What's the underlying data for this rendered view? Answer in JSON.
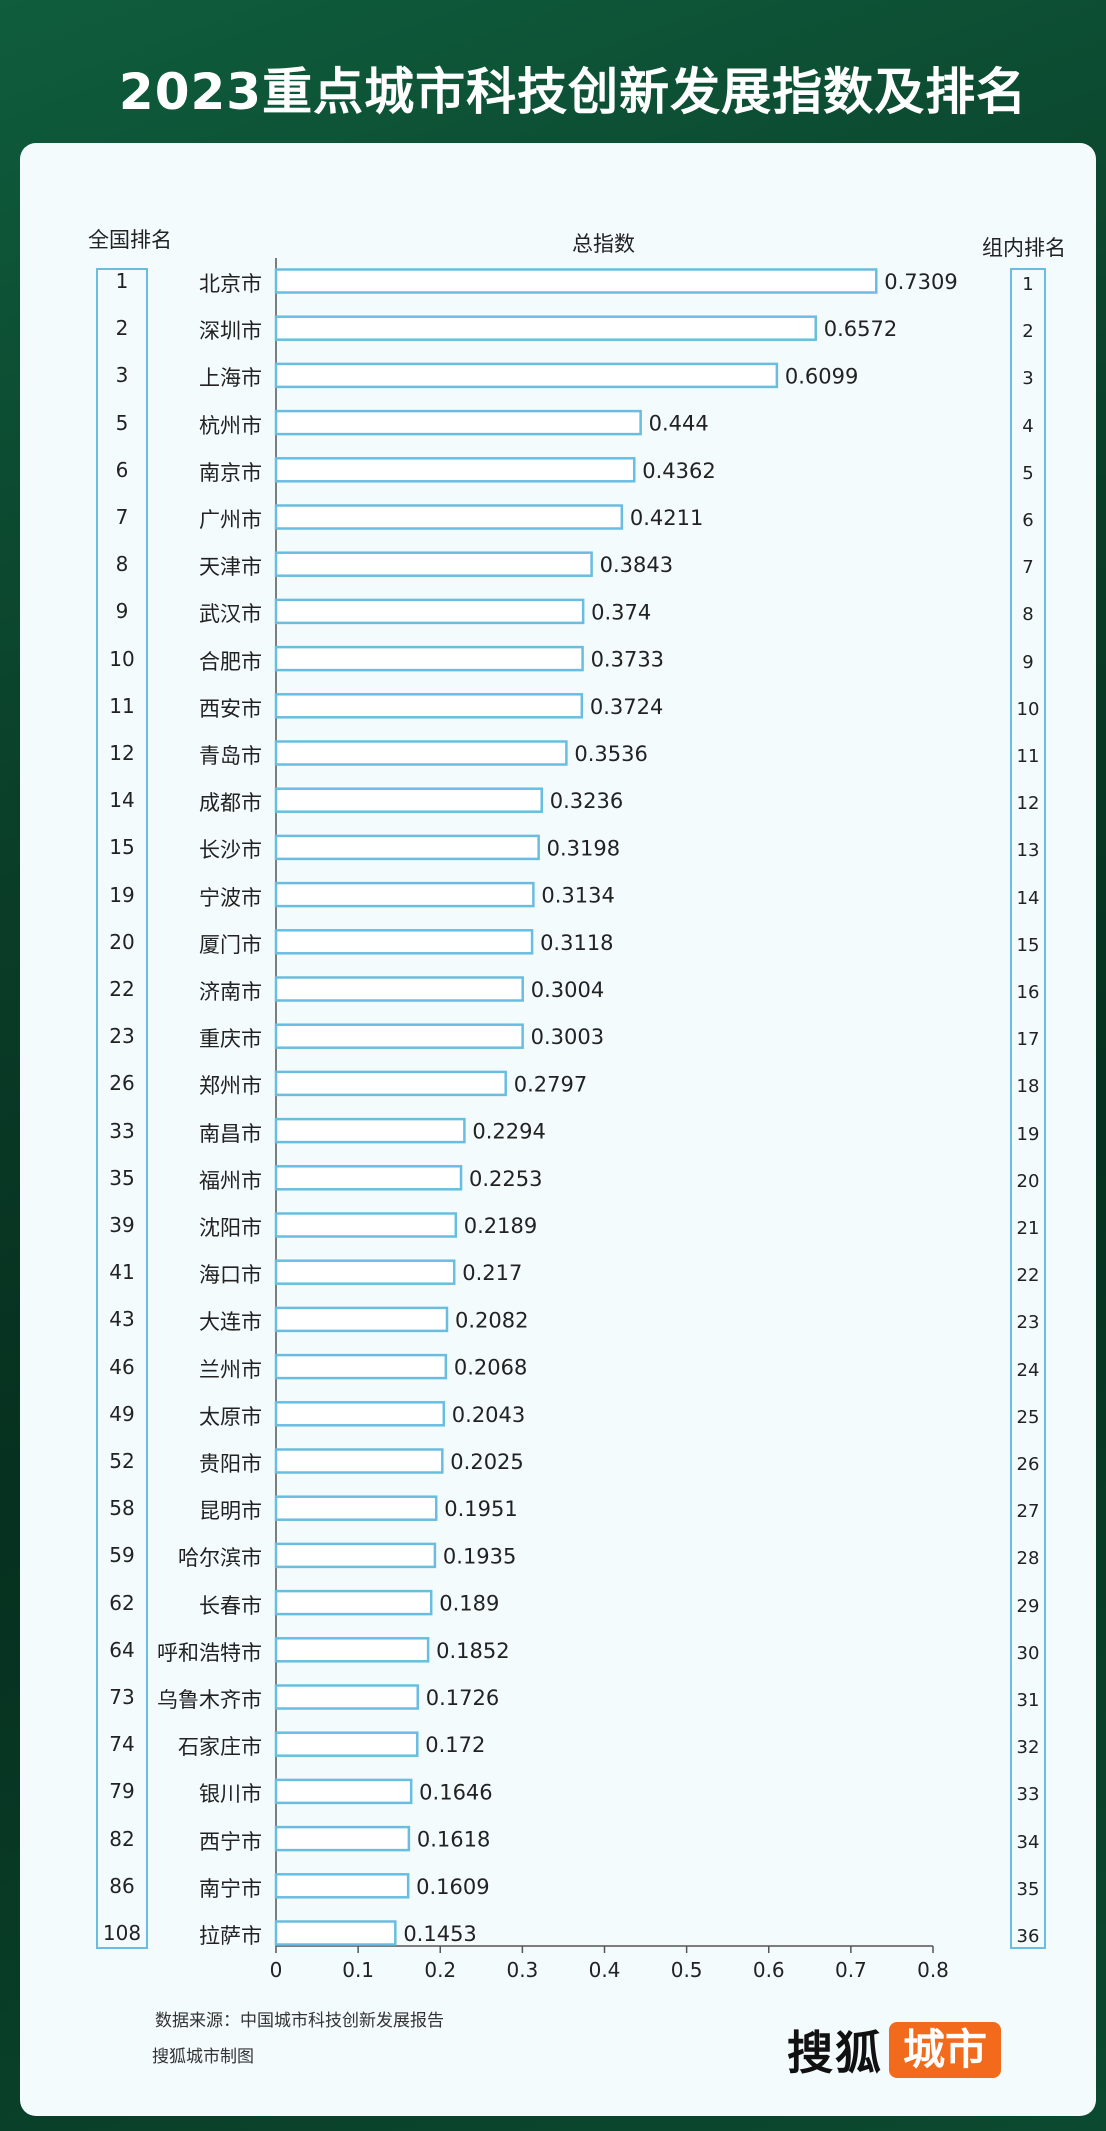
{
  "title": "2023重点城市科技创新发展指数及排名",
  "headers": {
    "national_rank": "全国排名",
    "total_index": "总指数",
    "group_rank": "组内排名"
  },
  "footer": {
    "source": "数据来源：中国城市科技创新发展报告",
    "credit": "搜狐城市制图"
  },
  "logo": {
    "brand": "搜狐",
    "tag": "城市"
  },
  "colors": {
    "bar_stroke": "#69bde0",
    "bar_fill": "#ffffff",
    "accent": "#f26b1d",
    "card": "#f4fbfc"
  },
  "chart_data": {
    "type": "bar",
    "orientation": "horizontal",
    "title": "2023重点城市科技创新发展指数及排名",
    "xlabel": "总指数",
    "xlim": [
      0,
      0.8
    ],
    "xticks": [
      0,
      0.1,
      0.2,
      0.3,
      0.4,
      0.5,
      0.6,
      0.7,
      0.8
    ],
    "xtick_labels": [
      "0",
      "0.1",
      "0.2",
      "0.3",
      "0.4",
      "0.5",
      "0.6",
      "0.7",
      "0.8"
    ],
    "categories": [
      "北京市",
      "深圳市",
      "上海市",
      "杭州市",
      "南京市",
      "广州市",
      "天津市",
      "武汉市",
      "合肥市",
      "西安市",
      "青岛市",
      "成都市",
      "长沙市",
      "宁波市",
      "厦门市",
      "济南市",
      "重庆市",
      "郑州市",
      "南昌市",
      "福州市",
      "沈阳市",
      "海口市",
      "大连市",
      "兰州市",
      "太原市",
      "贵阳市",
      "昆明市",
      "哈尔滨市",
      "长春市",
      "呼和浩特市",
      "乌鲁木齐市",
      "石家庄市",
      "银川市",
      "西宁市",
      "南宁市",
      "拉萨市"
    ],
    "values": [
      0.7309,
      0.6572,
      0.6099,
      0.444,
      0.4362,
      0.4211,
      0.3843,
      0.374,
      0.3733,
      0.3724,
      0.3536,
      0.3236,
      0.3198,
      0.3134,
      0.3118,
      0.3004,
      0.3003,
      0.2797,
      0.2294,
      0.2253,
      0.2189,
      0.217,
      0.2082,
      0.2068,
      0.2043,
      0.2025,
      0.1951,
      0.1935,
      0.189,
      0.1852,
      0.1726,
      0.172,
      0.1646,
      0.1618,
      0.1609,
      0.1453
    ],
    "value_labels": [
      "0.7309",
      "0.6572",
      "0.6099",
      "0.444",
      "0.4362",
      "0.4211",
      "0.3843",
      "0.374",
      "0.3733",
      "0.3724",
      "0.3536",
      "0.3236",
      "0.3198",
      "0.3134",
      "0.3118",
      "0.3004",
      "0.3003",
      "0.2797",
      "0.2294",
      "0.2253",
      "0.2189",
      "0.217",
      "0.2082",
      "0.2068",
      "0.2043",
      "0.2025",
      "0.1951",
      "0.1935",
      "0.189",
      "0.1852",
      "0.1726",
      "0.172",
      "0.1646",
      "0.1618",
      "0.1609",
      "0.1453"
    ],
    "national_rank": [
      "1",
      "2",
      "3",
      "5",
      "6",
      "7",
      "8",
      "9",
      "10",
      "11",
      "12",
      "14",
      "15",
      "19",
      "20",
      "22",
      "23",
      "26",
      "33",
      "35",
      "39",
      "41",
      "43",
      "46",
      "49",
      "52",
      "58",
      "59",
      "62",
      "64",
      "73",
      "74",
      "79",
      "82",
      "86",
      "108"
    ],
    "group_rank": [
      "1",
      "2",
      "3",
      "4",
      "5",
      "6",
      "7",
      "8",
      "9",
      "10",
      "11",
      "12",
      "13",
      "14",
      "15",
      "16",
      "17",
      "18",
      "19",
      "20",
      "21",
      "22",
      "23",
      "24",
      "25",
      "26",
      "27",
      "28",
      "29",
      "30",
      "31",
      "32",
      "33",
      "34",
      "35",
      "36"
    ]
  }
}
